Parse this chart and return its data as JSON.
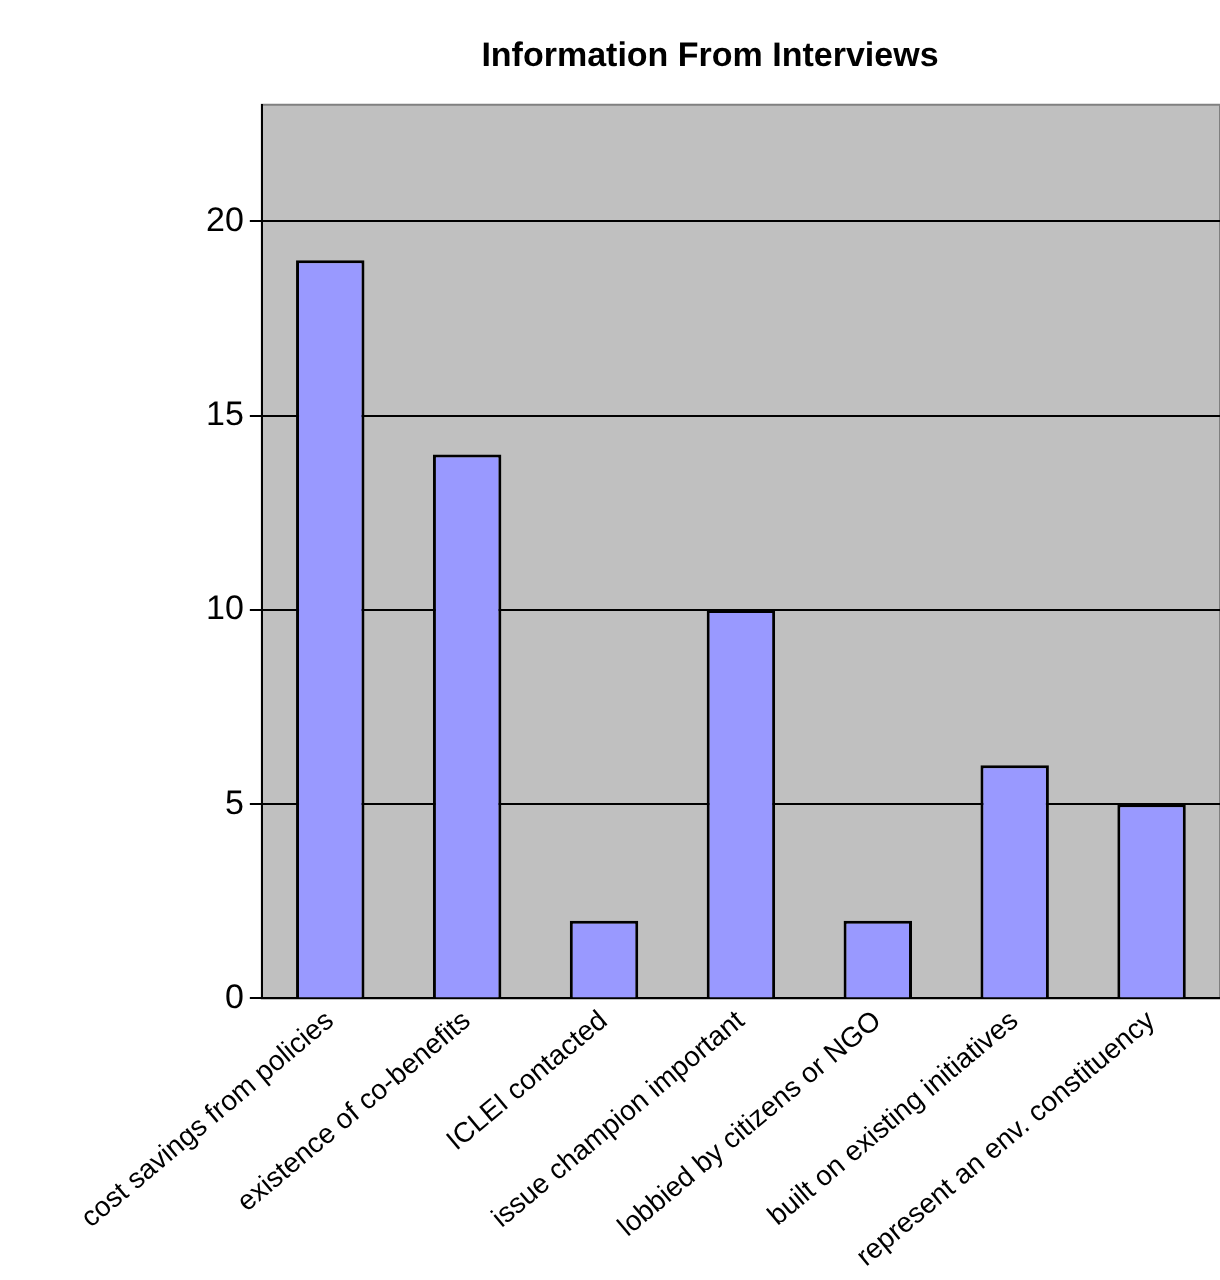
{
  "chart_data": {
    "type": "bar",
    "title": "Information From Interviews",
    "categories": [
      "cost savings from policies",
      "existence of co-benefits",
      "ICLEI contacted",
      "issue champion important",
      "lobbied by citizens or NGO",
      "built on existing initiatives",
      "represent an env. constituency"
    ],
    "values": [
      19,
      14,
      2,
      10,
      2,
      6,
      5
    ],
    "color": "#9999ff",
    "ylim": [
      0,
      23
    ],
    "yticks": [
      0,
      5,
      10,
      15,
      20
    ],
    "grid": "y",
    "legend": false
  }
}
